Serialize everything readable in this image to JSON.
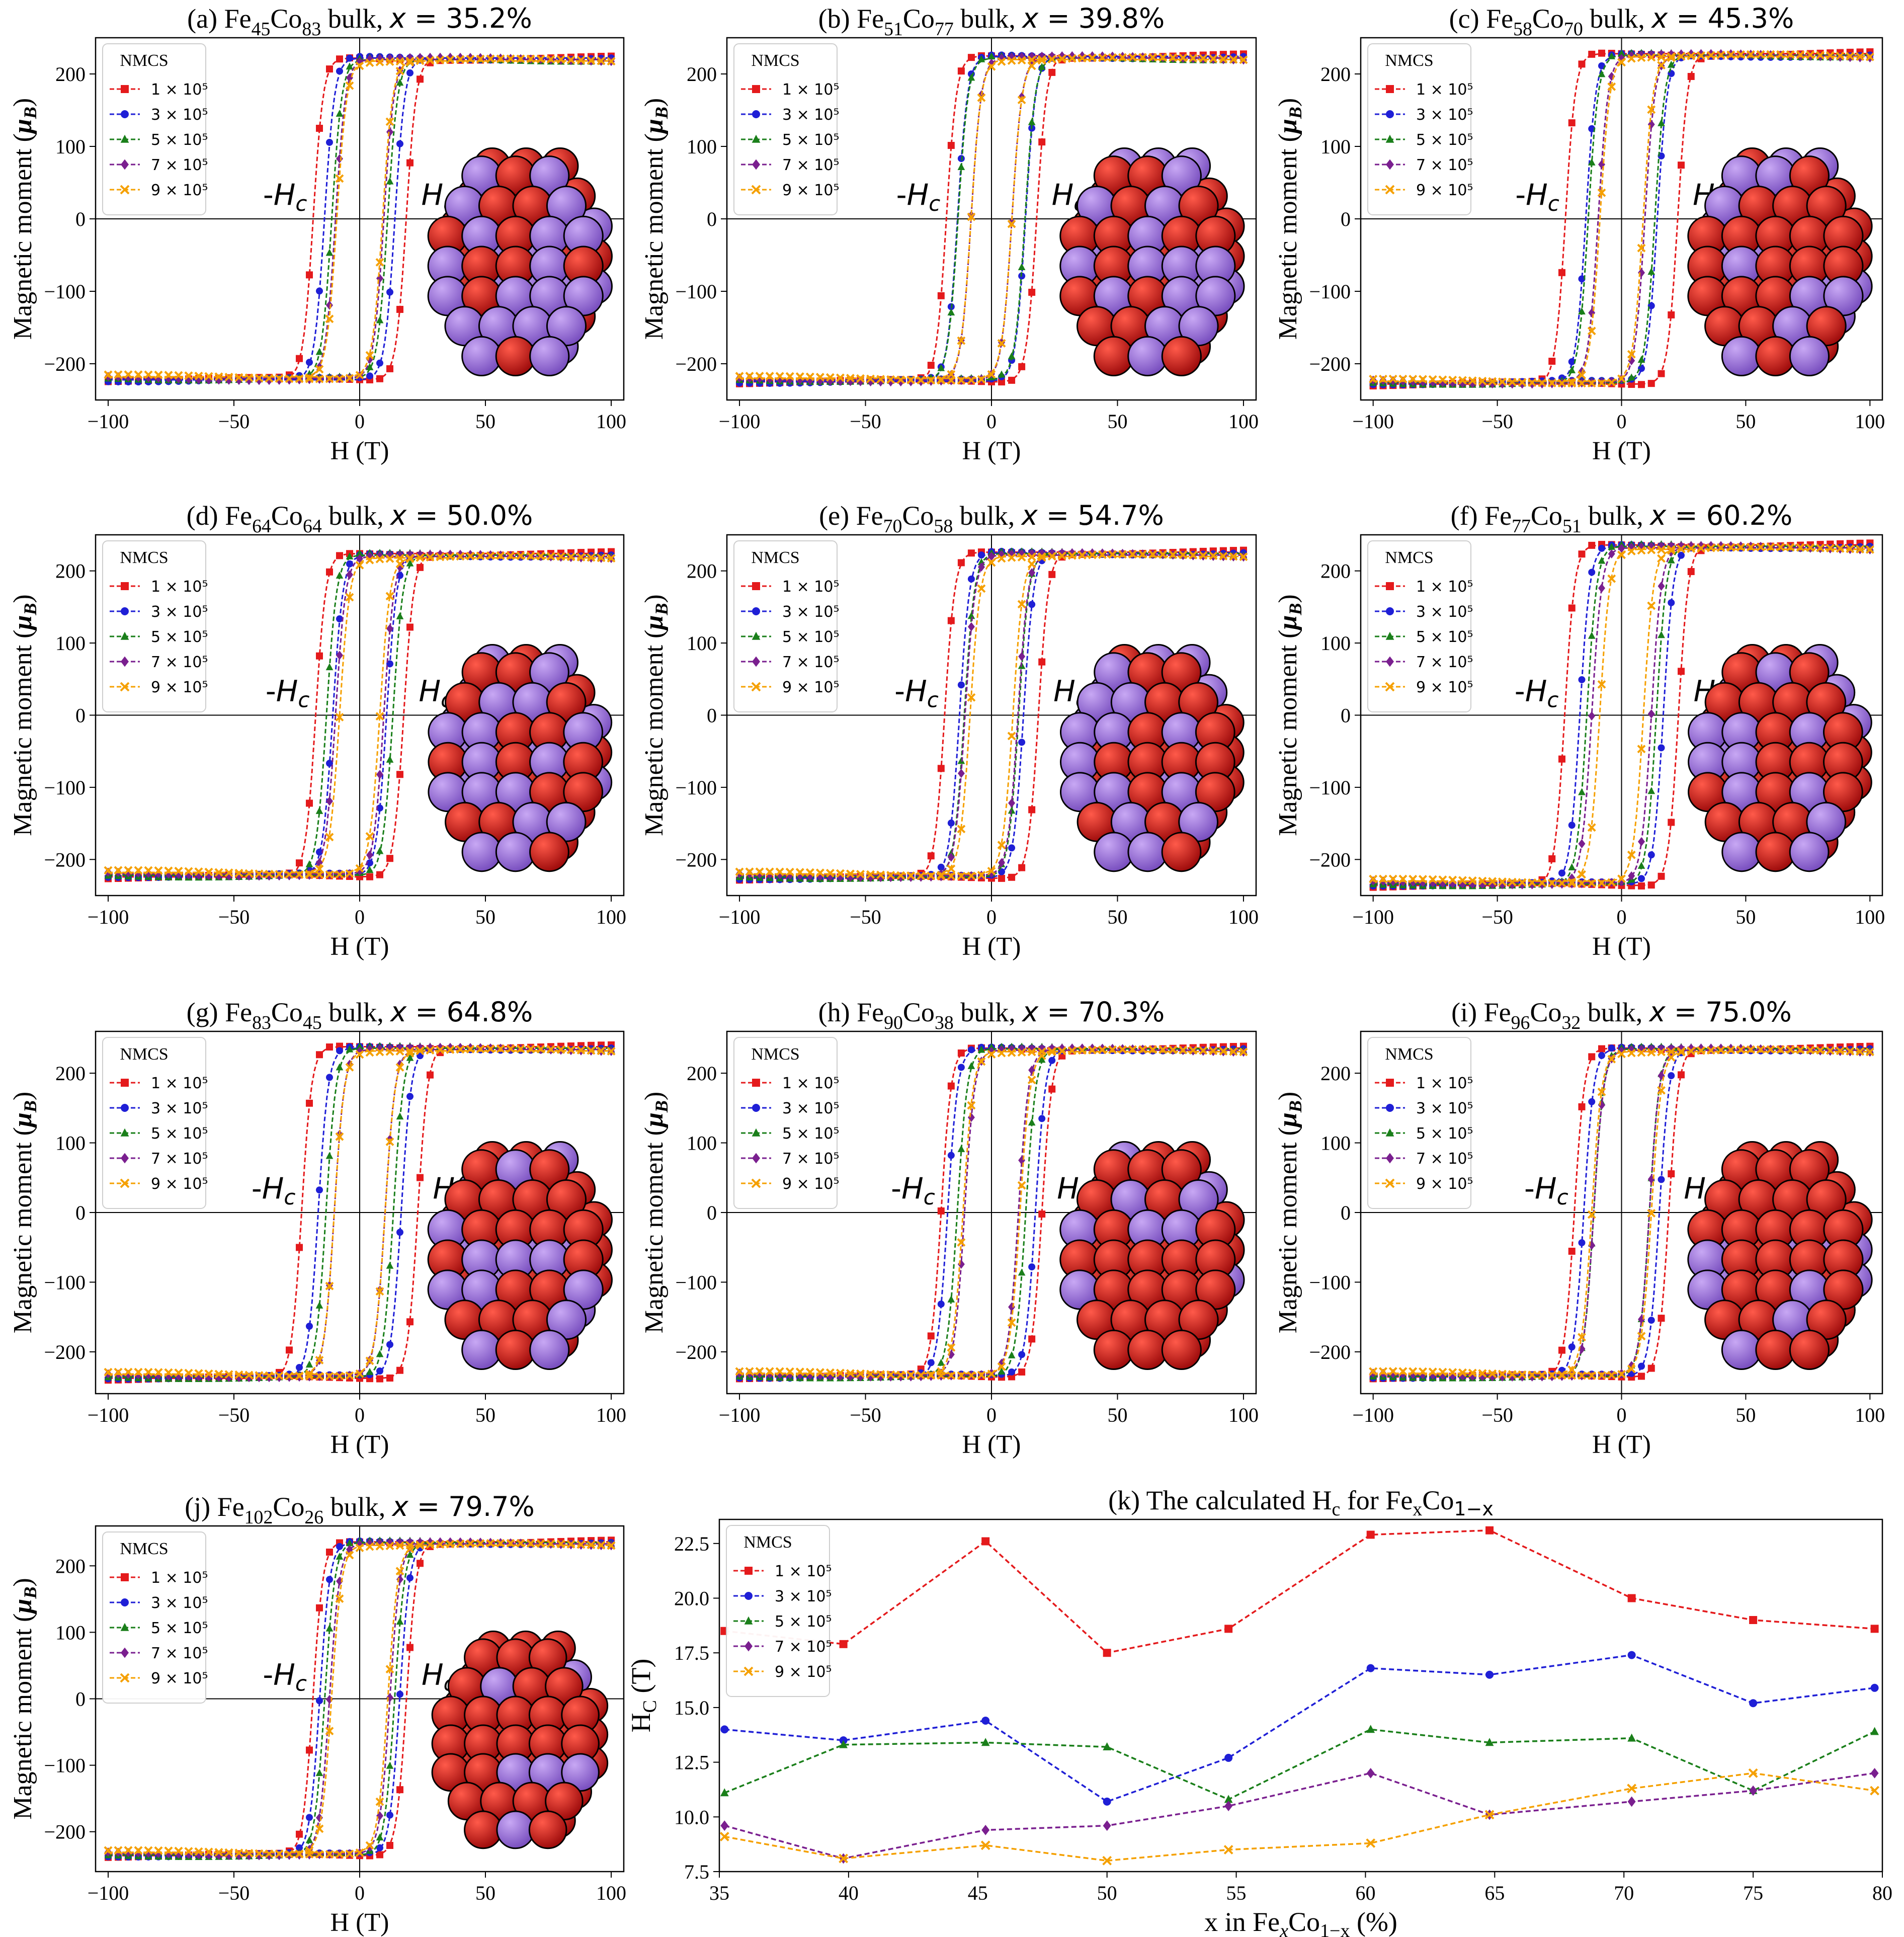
{
  "figure": {
    "legend_title": "NMCS",
    "legend_labels": [
      "1 × 10⁵",
      "3 × 10⁵",
      "5 × 10⁵",
      "7 × 10⁵",
      "9 × 10⁵"
    ],
    "series_colors": [
      "#e41a1c",
      "#1f1fd6",
      "#1a7f1a",
      "#7a1f8f",
      "#f5a000"
    ],
    "series_markers": [
      "square",
      "circle",
      "triangle",
      "diamond",
      "x"
    ],
    "hysteresis_xlabel": "H (T)",
    "hysteresis_ylabel": "Magnetic moment (μB)",
    "neg_hc_label": "-Hc",
    "pos_hc_label": "Hc",
    "atom_colors": {
      "Fe": "#cc1f1f",
      "Co": "#9a6fd6"
    }
  },
  "chart_data": [
    {
      "type": "line",
      "id": "a",
      "title": "(a) Fe45Co83 bulk, x = 35.2%",
      "xlim": [
        -105,
        105
      ],
      "ylim": [
        -250,
        250
      ],
      "xticks": [
        -100,
        -50,
        0,
        50,
        100
      ],
      "yticks": [
        -200,
        -100,
        0,
        100,
        200
      ],
      "saturation": [
        222,
        222,
        220,
        220,
        218
      ],
      "coercivity": [
        18.5,
        14.0,
        11.1,
        9.6,
        9.1
      ],
      "fe_fraction": 0.352
    },
    {
      "type": "line",
      "id": "b",
      "title": "(b) Fe51Co77 bulk, x = 39.8%",
      "xlim": [
        -105,
        105
      ],
      "ylim": [
        -250,
        250
      ],
      "xticks": [
        -100,
        -50,
        0,
        50,
        100
      ],
      "yticks": [
        -200,
        -100,
        0,
        100,
        200
      ],
      "saturation": [
        225,
        224,
        222,
        222,
        220
      ],
      "coercivity": [
        17.9,
        13.5,
        13.3,
        8.1,
        8.1
      ],
      "fe_fraction": 0.398
    },
    {
      "type": "line",
      "id": "c",
      "title": "(c) Fe58Co70 bulk, x = 45.3%",
      "xlim": [
        -105,
        105
      ],
      "ylim": [
        -250,
        250
      ],
      "xticks": [
        -100,
        -50,
        0,
        50,
        100
      ],
      "yticks": [
        -200,
        -100,
        0,
        100,
        200
      ],
      "saturation": [
        228,
        226,
        226,
        225,
        224
      ],
      "coercivity": [
        22.6,
        14.4,
        13.4,
        9.4,
        8.7
      ],
      "fe_fraction": 0.453
    },
    {
      "type": "line",
      "id": "d",
      "title": "(d) Fe64Co64 bulk, x = 50.0%",
      "xlim": [
        -105,
        105
      ],
      "ylim": [
        -250,
        250
      ],
      "xticks": [
        -100,
        -50,
        0,
        50,
        100
      ],
      "yticks": [
        -200,
        -100,
        0,
        100,
        200
      ],
      "saturation": [
        224,
        222,
        222,
        220,
        218
      ],
      "coercivity": [
        17.5,
        10.7,
        13.2,
        9.6,
        8.0
      ],
      "fe_fraction": 0.5
    },
    {
      "type": "line",
      "id": "e",
      "title": "(e) Fe70Co58 bulk, x = 54.7%",
      "xlim": [
        -105,
        105
      ],
      "ylim": [
        -250,
        250
      ],
      "xticks": [
        -100,
        -50,
        0,
        50,
        100
      ],
      "yticks": [
        -200,
        -100,
        0,
        100,
        200
      ],
      "saturation": [
        226,
        225,
        224,
        222,
        220
      ],
      "coercivity": [
        18.6,
        12.7,
        10.8,
        10.5,
        8.5
      ],
      "fe_fraction": 0.547
    },
    {
      "type": "line",
      "id": "f",
      "title": "(f) Fe77Co51 bulk, x = 60.2%",
      "xlim": [
        -105,
        105
      ],
      "ylim": [
        -250,
        250
      ],
      "xticks": [
        -100,
        -50,
        0,
        50,
        100
      ],
      "yticks": [
        -200,
        -100,
        0,
        100,
        200
      ],
      "saturation": [
        236,
        234,
        234,
        232,
        230
      ],
      "coercivity": [
        22.9,
        16.8,
        14.0,
        12.0,
        8.8
      ],
      "fe_fraction": 0.602
    },
    {
      "type": "line",
      "id": "g",
      "title": "(g) Fe83Co45 bulk, x = 64.8%",
      "xlim": [
        -105,
        105
      ],
      "ylim": [
        -260,
        260
      ],
      "xticks": [
        -100,
        -50,
        0,
        50,
        100
      ],
      "yticks": [
        -200,
        -100,
        0,
        100,
        200
      ],
      "saturation": [
        238,
        236,
        236,
        234,
        232
      ],
      "coercivity": [
        23.1,
        16.5,
        13.4,
        10.1,
        10.1
      ],
      "fe_fraction": 0.648
    },
    {
      "type": "line",
      "id": "h",
      "title": "(h) Fe90Co38 bulk, x = 70.3%",
      "xlim": [
        -105,
        105
      ],
      "ylim": [
        -260,
        260
      ],
      "xticks": [
        -100,
        -50,
        0,
        50,
        100
      ],
      "yticks": [
        -200,
        -100,
        0,
        100,
        200
      ],
      "saturation": [
        236,
        235,
        235,
        233,
        231
      ],
      "coercivity": [
        20.0,
        17.4,
        13.6,
        10.7,
        11.3
      ],
      "fe_fraction": 0.703
    },
    {
      "type": "line",
      "id": "i",
      "title": "(i) Fe96Co32 bulk, x = 75.0%",
      "xlim": [
        -105,
        105
      ],
      "ylim": [
        -260,
        260
      ],
      "xticks": [
        -100,
        -50,
        0,
        50,
        100
      ],
      "yticks": [
        -200,
        -100,
        0,
        100,
        200
      ],
      "saturation": [
        236,
        235,
        235,
        233,
        231
      ],
      "coercivity": [
        19.0,
        15.2,
        11.2,
        11.2,
        12.0
      ],
      "fe_fraction": 0.75
    },
    {
      "type": "line",
      "id": "j",
      "title": "(j) Fe102Co26 bulk, x = 79.7%",
      "xlim": [
        -105,
        105
      ],
      "ylim": [
        -260,
        260
      ],
      "xticks": [
        -100,
        -50,
        0,
        50,
        100
      ],
      "yticks": [
        -200,
        -100,
        0,
        100,
        200
      ],
      "saturation": [
        236,
        235,
        235,
        233,
        231
      ],
      "coercivity": [
        18.6,
        15.9,
        13.9,
        12.0,
        11.2
      ],
      "fe_fraction": 0.797
    },
    {
      "type": "line",
      "id": "k",
      "title": "(k) The calculated Hc for FexCo1−x",
      "xlabel": "x in FexCo1−x (%)",
      "ylabel": "Hc (T)",
      "xlim": [
        35,
        80
      ],
      "ylim": [
        7.5,
        23.6
      ],
      "xticks": [
        35,
        40,
        45,
        50,
        55,
        60,
        65,
        70,
        75,
        80
      ],
      "yticks": [
        7.5,
        10.0,
        12.5,
        15.0,
        17.5,
        20.0,
        22.5
      ],
      "x": [
        35.2,
        39.8,
        45.3,
        50.0,
        54.7,
        60.2,
        64.8,
        70.3,
        75.0,
        79.7
      ],
      "series": [
        {
          "name": "1 × 10⁵",
          "values": [
            18.5,
            17.9,
            22.6,
            17.5,
            18.6,
            22.9,
            23.1,
            20.0,
            19.0,
            18.6
          ]
        },
        {
          "name": "3 × 10⁵",
          "values": [
            14.0,
            13.5,
            14.4,
            10.7,
            12.7,
            16.8,
            16.5,
            17.4,
            15.2,
            15.9
          ]
        },
        {
          "name": "5 × 10⁵",
          "values": [
            11.1,
            13.3,
            13.4,
            13.2,
            10.8,
            14.0,
            13.4,
            13.6,
            11.2,
            13.9
          ]
        },
        {
          "name": "7 × 10⁵",
          "values": [
            9.6,
            8.1,
            9.4,
            9.6,
            10.5,
            12.0,
            10.1,
            10.7,
            11.2,
            12.0
          ]
        },
        {
          "name": "9 × 10⁵",
          "values": [
            9.1,
            8.1,
            8.7,
            8.0,
            8.5,
            8.8,
            10.1,
            11.3,
            12.0,
            11.2
          ]
        }
      ]
    }
  ]
}
